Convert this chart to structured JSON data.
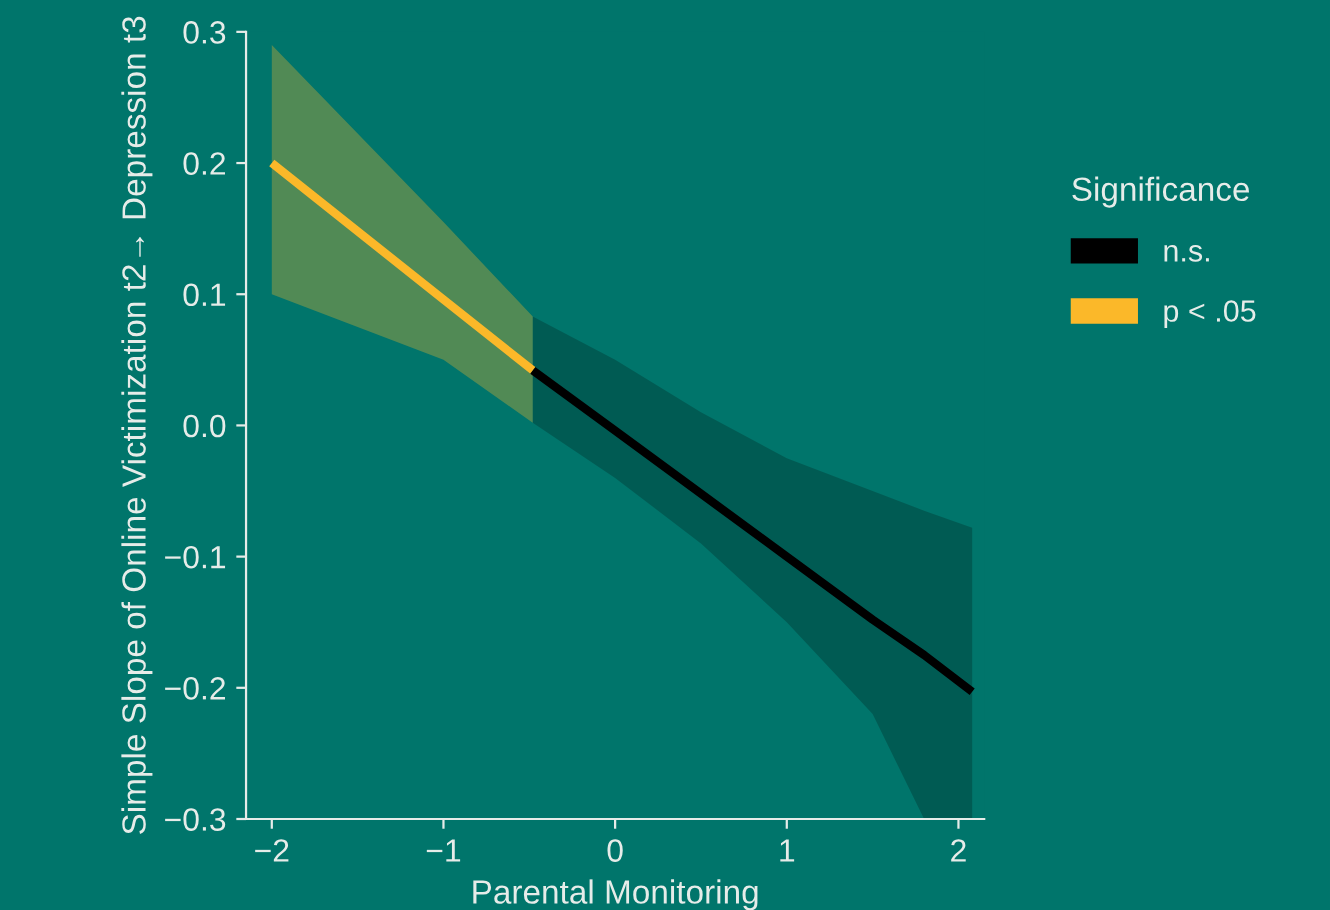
{
  "chart_data": {
    "type": "line",
    "xlabel": "Parental Monitoring",
    "ylabel": "Simple Slope of Online Victimization t2→ Depression t3",
    "legend_title": "Significance",
    "xlim": [
      -2.15,
      2.15
    ],
    "ylim": [
      -0.3,
      0.3
    ],
    "xticks": [
      {
        "value": -2,
        "label": "−2"
      },
      {
        "value": -1,
        "label": "−1"
      },
      0,
      1,
      2
    ],
    "yticks": [
      {
        "value": -0.3,
        "label": "−0.3"
      },
      {
        "value": -0.2,
        "label": "−0.2"
      },
      {
        "value": -0.1,
        "label": "−0.1"
      },
      {
        "value": 0,
        "label": "0.0"
      },
      0.1,
      0.2,
      0.3
    ],
    "grid": false,
    "legend": "right",
    "marker": "none",
    "line_style": "solid",
    "series": [
      {
        "name": "n.s.",
        "color": "#000000",
        "x": [
          -0.48,
          0,
          0.5,
          1,
          1.5,
          1.8,
          2.08
        ],
        "values": [
          0.042,
          -0.004,
          -0.052,
          -0.1,
          -0.148,
          -0.175,
          -0.203
        ],
        "lower": [
          0.002,
          -0.04,
          -0.09,
          -0.15,
          -0.22,
          -0.3,
          -0.3
        ],
        "upper": [
          0.083,
          0.05,
          0.01,
          -0.025,
          -0.05,
          -0.065,
          -0.078
        ]
      },
      {
        "name": "p < .05",
        "color": "#fbb829",
        "x": [
          -2,
          -1,
          -0.48
        ],
        "values": [
          0.2,
          0.096,
          0.042
        ],
        "lower": [
          0.1,
          0.05,
          0.002
        ],
        "upper": [
          0.29,
          0.155,
          0.083
        ]
      }
    ]
  }
}
